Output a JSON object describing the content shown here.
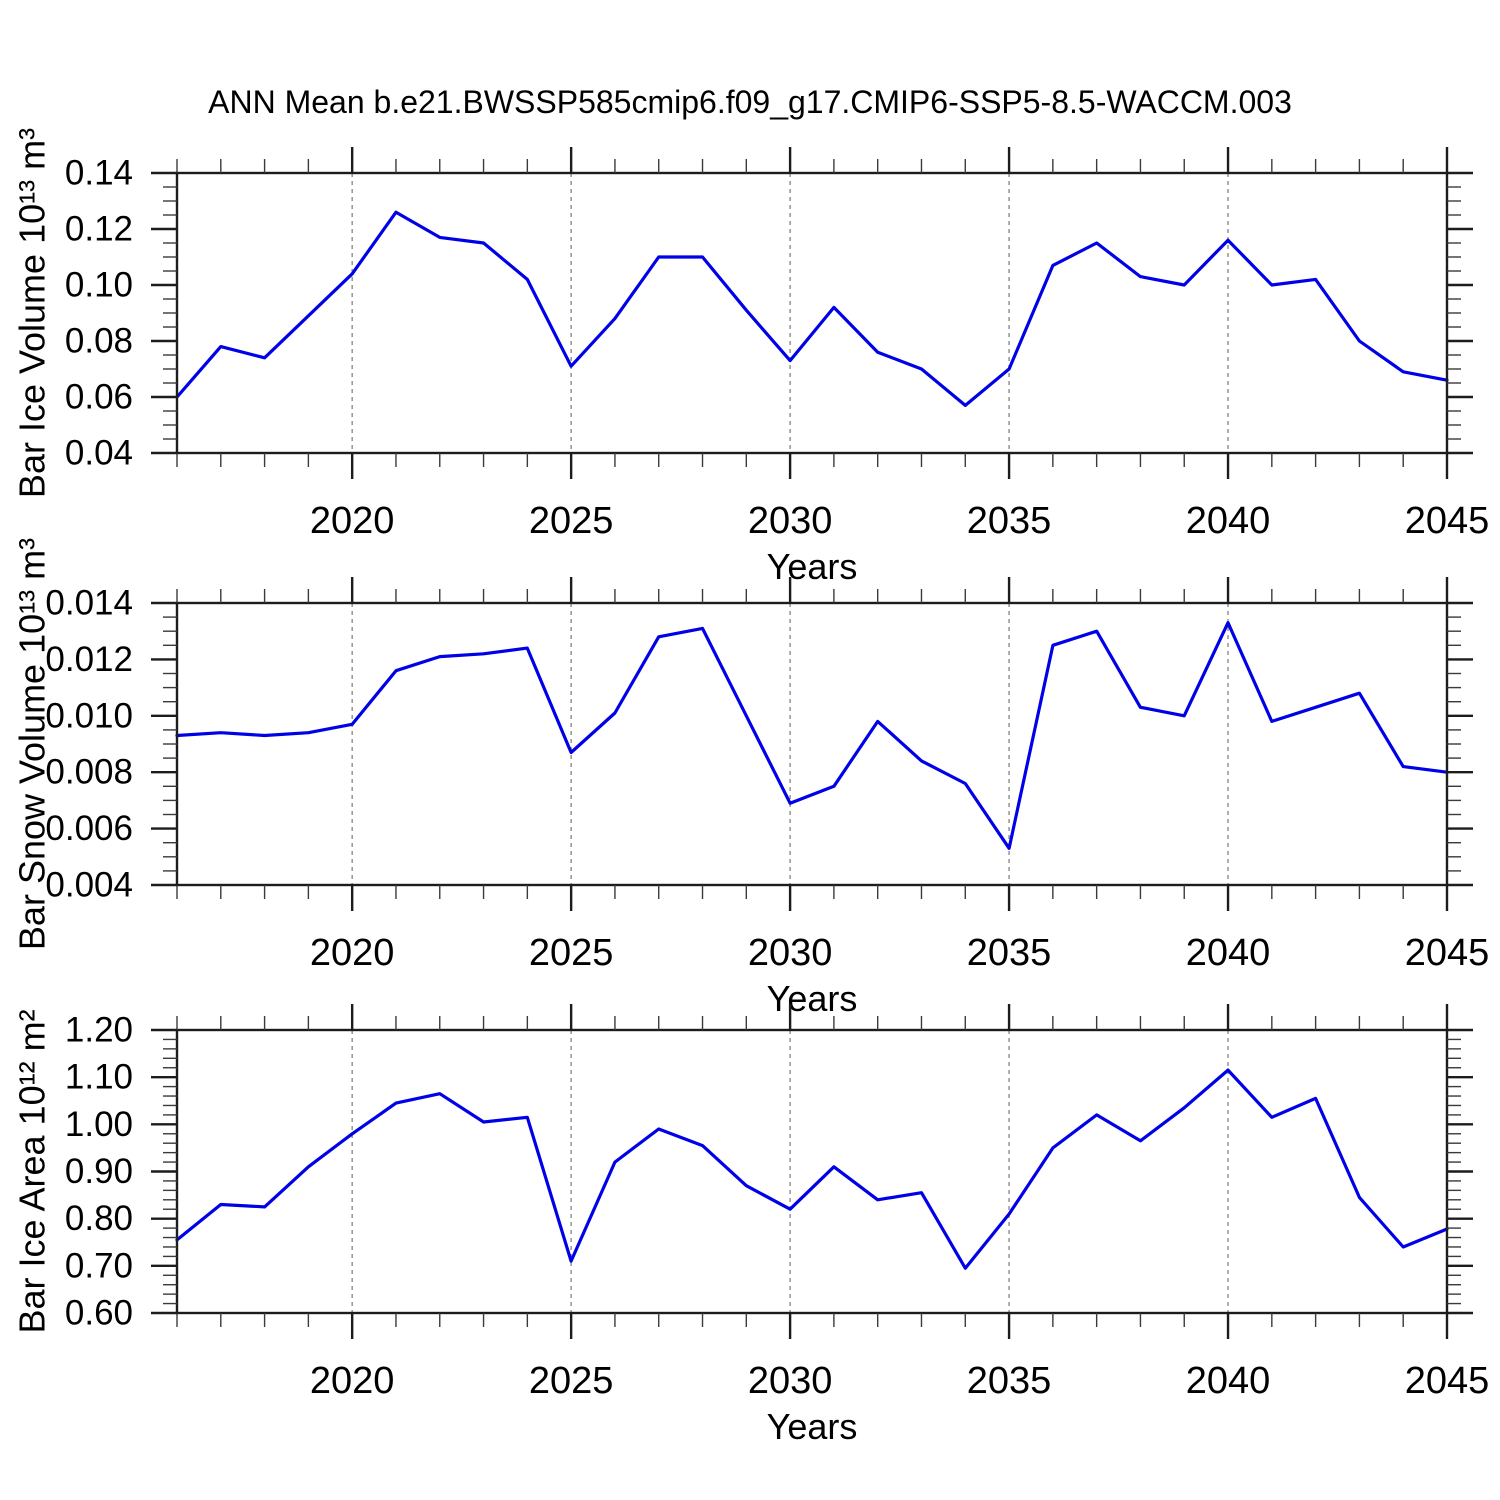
{
  "title": "ANN Mean b.e21.BWSSP585cmip6.f09_g17.CMIP6-SSP5-8.5-WACCM.003",
  "style": {
    "line_color": "#0101E8",
    "axis_color": "#1c1c1c",
    "minor_tick_color": "#3a3a3a",
    "grid_color": "#8c8c8c",
    "background": "#ffffff",
    "text_color": "#000000"
  },
  "x_axis": {
    "label": "Years",
    "range": [
      2016,
      2045
    ],
    "major_ticks": [
      2020,
      2025,
      2030,
      2035,
      2040,
      2045
    ],
    "tick_labels": [
      "2020",
      "2025",
      "2030",
      "2035",
      "2040",
      "2045"
    ],
    "minor_step": 1
  },
  "chart_data": [
    {
      "type": "line",
      "name": "bar-ice-volume",
      "title": "",
      "ylabel": "Bar Ice Volume 10¹³ m³",
      "xlabel": "Years",
      "ylim": [
        0.04,
        0.14
      ],
      "yticks": [
        0.04,
        0.06,
        0.08,
        0.1,
        0.12,
        0.14
      ],
      "ytick_labels": [
        "0.04",
        "0.06",
        "0.08",
        "0.10",
        "0.12",
        "0.14"
      ],
      "y_minor_step": 0.005,
      "grid": "vertical-dashed",
      "legend": "none",
      "x": [
        2016,
        2017,
        2018,
        2019,
        2020,
        2021,
        2022,
        2023,
        2024,
        2025,
        2026,
        2027,
        2028,
        2029,
        2030,
        2031,
        2032,
        2033,
        2034,
        2035,
        2036,
        2037,
        2038,
        2039,
        2040,
        2041,
        2042,
        2043,
        2044,
        2045
      ],
      "values": [
        0.06,
        0.078,
        0.074,
        0.089,
        0.104,
        0.126,
        0.117,
        0.115,
        0.102,
        0.071,
        0.088,
        0.11,
        0.11,
        0.091,
        0.073,
        0.092,
        0.076,
        0.07,
        0.057,
        0.07,
        0.107,
        0.115,
        0.103,
        0.1,
        0.116,
        0.1,
        0.102,
        0.08,
        0.069,
        0.066
      ]
    },
    {
      "type": "line",
      "name": "bar-snow-volume",
      "title": "",
      "ylabel": "Bar Snow Volume 10¹³ m³",
      "xlabel": "Years",
      "ylim": [
        0.004,
        0.014
      ],
      "yticks": [
        0.004,
        0.006,
        0.008,
        0.01,
        0.012,
        0.014
      ],
      "ytick_labels": [
        "0.004",
        "0.006",
        "0.008",
        "0.010",
        "0.012",
        "0.014"
      ],
      "y_minor_step": 0.0005,
      "grid": "vertical-dashed",
      "legend": "none",
      "x": [
        2016,
        2017,
        2018,
        2019,
        2020,
        2021,
        2022,
        2023,
        2024,
        2025,
        2026,
        2027,
        2028,
        2029,
        2030,
        2031,
        2032,
        2033,
        2034,
        2035,
        2036,
        2037,
        2038,
        2039,
        2040,
        2041,
        2042,
        2043,
        2044,
        2045
      ],
      "values": [
        0.0093,
        0.0094,
        0.0093,
        0.0094,
        0.0097,
        0.0116,
        0.0121,
        0.0122,
        0.0124,
        0.0087,
        0.0101,
        0.0128,
        0.0131,
        0.01,
        0.0069,
        0.0075,
        0.0098,
        0.0084,
        0.0076,
        0.0053,
        0.0125,
        0.013,
        0.0103,
        0.01,
        0.0133,
        0.0098,
        0.0103,
        0.0108,
        0.0082,
        0.008
      ]
    },
    {
      "type": "line",
      "name": "bar-ice-area",
      "title": "",
      "ylabel": "Bar Ice Area 10¹² m²",
      "xlabel": "Years",
      "ylim": [
        0.6,
        1.2
      ],
      "yticks": [
        0.6,
        0.7,
        0.8,
        0.9,
        1.0,
        1.1,
        1.2
      ],
      "ytick_labels": [
        "0.60",
        "0.70",
        "0.80",
        "0.90",
        "1.00",
        "1.10",
        "1.20"
      ],
      "y_minor_step": 0.02,
      "grid": "vertical-dashed",
      "legend": "none",
      "x": [
        2016,
        2017,
        2018,
        2019,
        2020,
        2021,
        2022,
        2023,
        2024,
        2025,
        2026,
        2027,
        2028,
        2029,
        2030,
        2031,
        2032,
        2033,
        2034,
        2035,
        2036,
        2037,
        2038,
        2039,
        2040,
        2041,
        2042,
        2043,
        2044,
        2045
      ],
      "values": [
        0.755,
        0.83,
        0.825,
        0.91,
        0.98,
        1.045,
        1.065,
        1.005,
        1.015,
        0.71,
        0.92,
        0.99,
        0.955,
        0.87,
        0.82,
        0.91,
        0.84,
        0.855,
        0.695,
        0.81,
        0.95,
        1.02,
        0.965,
        1.035,
        1.115,
        1.015,
        1.055,
        0.845,
        0.74,
        0.778
      ]
    }
  ]
}
